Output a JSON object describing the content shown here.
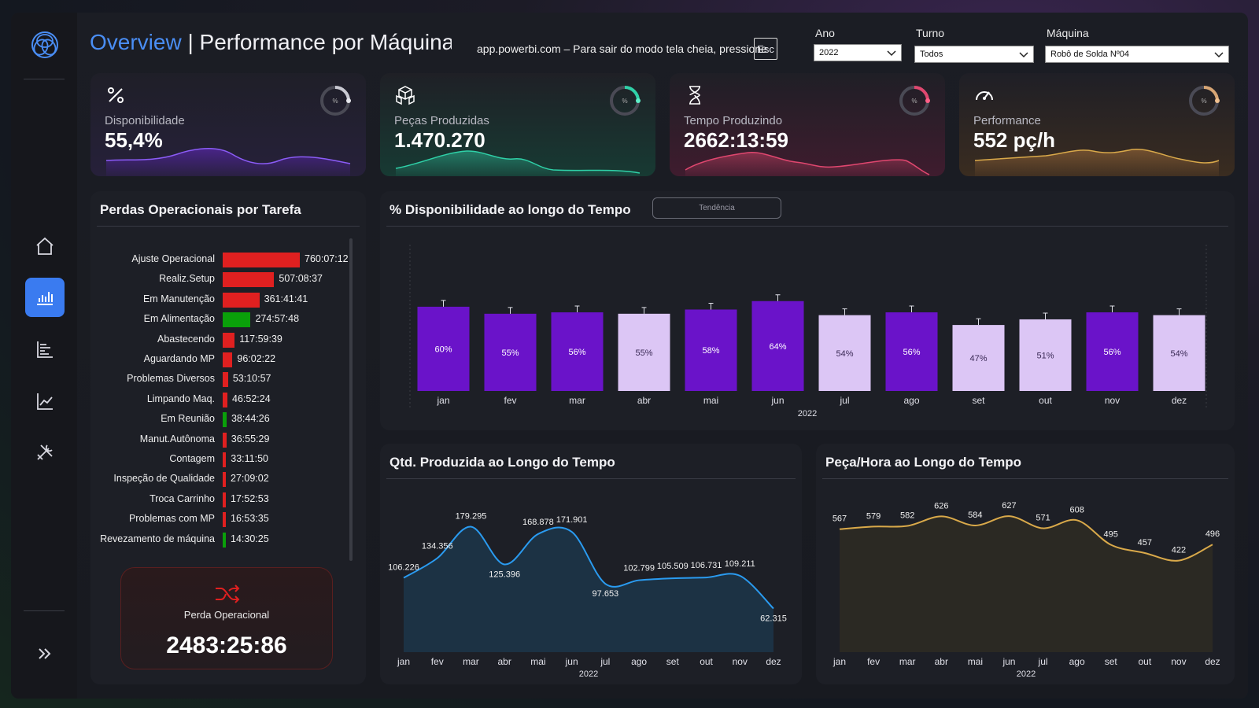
{
  "header": {
    "title_accent": "Overview",
    "title_rest": " | Performance por Máquina",
    "fullscreen_note": "app.powerbi.com – Para sair do modo tela cheia, pressione",
    "esc_key": "Esc"
  },
  "filters": {
    "ano": {
      "label": "Ano",
      "value": "2022"
    },
    "turno": {
      "label": "Turno",
      "value": "Todos"
    },
    "maquina": {
      "label": "Máquina",
      "value": "Robô de Solda Nº04"
    }
  },
  "sidebar": {
    "items": [
      {
        "name": "home",
        "icon": "home-icon"
      },
      {
        "name": "overview",
        "icon": "bar-chart-icon",
        "active": true
      },
      {
        "name": "list",
        "icon": "list-chart-icon"
      },
      {
        "name": "trend",
        "icon": "line-chart-icon"
      },
      {
        "name": "tools",
        "icon": "tools-icon"
      }
    ],
    "expand_icon": "double-chevron-right-icon"
  },
  "kpis": [
    {
      "label": "Disponibilidade",
      "value": "55,4%",
      "ring_label": "%",
      "icon": "percent-icon",
      "color": "#7c3aed"
    },
    {
      "label": "Peças Produzidas",
      "value": "1.470.270",
      "ring_label": "%",
      "icon": "boxes-icon",
      "color": "#2fd1a8"
    },
    {
      "label": "Tempo Produzindo",
      "value": "2662:13:59",
      "ring_label": "%",
      "icon": "hourglass-icon",
      "color": "#e0476f"
    },
    {
      "label": "Performance",
      "value": "552 pç/h",
      "ring_label": "%",
      "icon": "gauge-icon",
      "color": "#d7a574"
    }
  ],
  "losses": {
    "title": "Perdas Operacionais por Tarefa",
    "rows": [
      {
        "name": "Ajuste Operacional",
        "value": "760:07:12",
        "hours": 760.1,
        "color": "#e02020"
      },
      {
        "name": "Realiz.Setup",
        "value": "507:08:37",
        "hours": 507.1,
        "color": "#e02020"
      },
      {
        "name": "Em Manutenção",
        "value": "361:41:41",
        "hours": 361.7,
        "color": "#e02020"
      },
      {
        "name": "Em Alimentação",
        "value": "274:57:48",
        "hours": 275.0,
        "color": "#0aa00a"
      },
      {
        "name": "Abastecendo",
        "value": "117:59:39",
        "hours": 118.0,
        "color": "#e02020"
      },
      {
        "name": "Aguardando MP",
        "value": "96:02:22",
        "hours": 96.0,
        "color": "#e02020"
      },
      {
        "name": "Problemas Diversos",
        "value": "53:10:57",
        "hours": 53.2,
        "color": "#e02020"
      },
      {
        "name": "Limpando Maq.",
        "value": "46:52:24",
        "hours": 46.9,
        "color": "#e02020"
      },
      {
        "name": "Em Reunião",
        "value": "38:44:26",
        "hours": 38.7,
        "color": "#0aa00a"
      },
      {
        "name": "Manut.Autônoma",
        "value": "36:55:29",
        "hours": 36.9,
        "color": "#e02020"
      },
      {
        "name": "Contagem",
        "value": "33:11:50",
        "hours": 33.2,
        "color": "#e02020"
      },
      {
        "name": "Inspeção de Qualidade",
        "value": "27:09:02",
        "hours": 27.2,
        "color": "#e02020"
      },
      {
        "name": "Troca Carrinho",
        "value": "17:52:53",
        "hours": 17.9,
        "color": "#e02020"
      },
      {
        "name": "Problemas com MP",
        "value": "16:53:35",
        "hours": 16.9,
        "color": "#e02020"
      },
      {
        "name": "Revezamento de máquina",
        "value": "14:30:25",
        "hours": 14.5,
        "color": "#0aa00a"
      }
    ],
    "total_label": "Perda Operacional",
    "total_value": "2483:25:86",
    "total_icon": "shuffle-icon"
  },
  "chart_data": [
    {
      "type": "bar",
      "title": "% Disponibilidade ao longo do Tempo",
      "button_label": "Tendência",
      "categories": [
        "jan",
        "fev",
        "mar",
        "abr",
        "mai",
        "jun",
        "jul",
        "ago",
        "set",
        "out",
        "nov",
        "dez"
      ],
      "values": [
        60,
        55,
        56,
        55,
        58,
        64,
        54,
        56,
        47,
        51,
        56,
        54
      ],
      "value_labels": [
        "60%",
        "55%",
        "56%",
        "55%",
        "58%",
        "64%",
        "54%",
        "56%",
        "47%",
        "51%",
        "56%",
        "54%"
      ],
      "highlight": [
        true,
        true,
        true,
        false,
        true,
        true,
        false,
        true,
        false,
        false,
        true,
        false
      ],
      "colors": {
        "dark": "#6a13c9",
        "light": "#dcc6f5"
      },
      "xlabel": "2022",
      "ylim": [
        0,
        100
      ]
    },
    {
      "type": "area",
      "title": "Qtd. Produzida ao Longo do Tempo",
      "categories": [
        "jan",
        "fev",
        "mar",
        "abr",
        "mai",
        "jun",
        "jul",
        "ago",
        "set",
        "out",
        "nov",
        "dez"
      ],
      "values": [
        106226,
        134356,
        179295,
        125396,
        168878,
        171901,
        97653,
        102799,
        105509,
        106731,
        109211,
        62315
      ],
      "value_labels": [
        "106.226",
        "134.356",
        "179.295",
        "125.396",
        "168.878",
        "171.901",
        "97.653",
        "102.799",
        "105.509",
        "106.731",
        "109.211",
        "62.315"
      ],
      "xlabel": "2022",
      "ylim": [
        0,
        200000
      ],
      "colors": {
        "line": "#2a9bf0",
        "fill": "#1d3448"
      }
    },
    {
      "type": "area",
      "title": "Peça/Hora ao Longo do Tempo",
      "categories": [
        "jan",
        "fev",
        "mar",
        "abr",
        "mai",
        "jun",
        "jul",
        "ago",
        "set",
        "out",
        "nov",
        "dez"
      ],
      "values": [
        567,
        579,
        582,
        626,
        584,
        627,
        571,
        608,
        495,
        457,
        422,
        496
      ],
      "value_labels": [
        "567",
        "579",
        "582",
        "626",
        "584",
        "627",
        "571",
        "608",
        "495",
        "457",
        "422",
        "496"
      ],
      "xlabel": "2022",
      "ylim": [
        0,
        700
      ],
      "colors": {
        "line": "#d9a94a",
        "fill": "#2e2a24"
      }
    }
  ]
}
